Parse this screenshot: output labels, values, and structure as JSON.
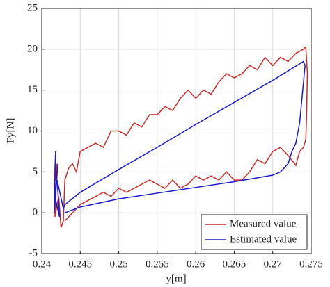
{
  "chart_data": {
    "type": "line",
    "xlabel": "y[m]",
    "ylabel": "Fy[N]",
    "xlim": [
      0.24,
      0.275
    ],
    "xticks": [
      0.24,
      0.245,
      0.25,
      0.255,
      0.26,
      0.265,
      0.27,
      0.275
    ],
    "ylim": [
      -5,
      25
    ],
    "yticks": [
      -5,
      0,
      5,
      10,
      15,
      20,
      25
    ],
    "grid": true,
    "legend": "lower right",
    "series": [
      {
        "name": "Measured value",
        "color": "#cc2a2a",
        "x": [
          0.2418,
          0.2416,
          0.242,
          0.2417,
          0.2422,
          0.2425,
          0.2428,
          0.243,
          0.2435,
          0.244,
          0.2445,
          0.245,
          0.246,
          0.247,
          0.248,
          0.249,
          0.25,
          0.251,
          0.252,
          0.253,
          0.254,
          0.255,
          0.256,
          0.257,
          0.258,
          0.259,
          0.26,
          0.261,
          0.262,
          0.263,
          0.264,
          0.265,
          0.266,
          0.267,
          0.268,
          0.269,
          0.27,
          0.271,
          0.272,
          0.273,
          0.274,
          0.2743,
          0.2745,
          0.2744,
          0.2743,
          0.274,
          0.2735,
          0.273,
          0.272,
          0.271,
          0.27,
          0.269,
          0.268,
          0.267,
          0.266,
          0.265,
          0.264,
          0.263,
          0.262,
          0.261,
          0.26,
          0.259,
          0.258,
          0.257,
          0.256,
          0.254,
          0.253,
          0.251,
          0.25,
          0.249,
          0.248,
          0.246,
          0.245,
          0.244,
          0.243
        ],
        "values": [
          7.5,
          3,
          6,
          -0.5,
          2,
          -1.8,
          -1,
          4,
          5.5,
          6,
          5,
          7.5,
          8,
          8.5,
          8,
          10,
          10,
          9.5,
          11,
          10.5,
          12,
          12,
          13,
          12.5,
          14,
          15,
          14,
          15,
          14.5,
          16,
          17,
          16.5,
          17,
          18,
          17.5,
          19,
          18,
          19,
          18.5,
          19.5,
          20,
          20.3,
          17,
          12,
          9,
          8,
          7.5,
          5.8,
          7,
          8,
          7.5,
          6,
          6.5,
          5,
          4,
          4,
          5,
          4,
          4.5,
          4,
          4.5,
          3.5,
          3,
          4,
          3,
          4,
          3.5,
          2.5,
          3,
          2,
          2.5,
          1.5,
          1,
          0,
          -1
        ]
      },
      {
        "name": "Estimated value",
        "color": "#1a1acc",
        "x": [
          0.2418,
          0.2416,
          0.2421,
          0.2417,
          0.2423,
          0.242,
          0.2428,
          0.243,
          0.245,
          0.25,
          0.255,
          0.26,
          0.265,
          0.27,
          0.274,
          0.2742,
          0.2738,
          0.2735,
          0.2733,
          0.273,
          0.2725,
          0.272,
          0.271,
          0.27,
          0.265,
          0.26,
          0.255,
          0.25,
          0.245,
          0.243
        ],
        "values": [
          7.5,
          0,
          6,
          2,
          -0.5,
          4,
          0.5,
          1,
          2.5,
          5.3,
          8,
          10.8,
          13.5,
          16.2,
          18.5,
          18,
          14,
          11,
          10,
          8.5,
          7.5,
          6,
          5,
          4.6,
          3.8,
          3.1,
          2.4,
          1.7,
          0.7,
          0
        ]
      }
    ]
  }
}
